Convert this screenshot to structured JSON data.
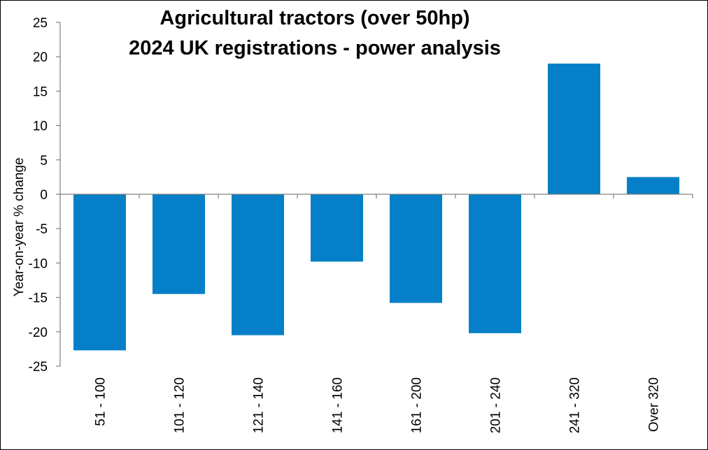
{
  "chart_data": {
    "type": "bar",
    "title_lines": [
      "Agricultural tractors (over 50hp)",
      "2024 UK registrations - power analysis"
    ],
    "xlabel": "",
    "ylabel": "Year-on-year  % change",
    "categories": [
      "51 - 100",
      "101 - 120",
      "121 - 140",
      "141 - 160",
      "161 - 200",
      "201 - 240",
      "241 - 320",
      "Over 320"
    ],
    "values": [
      -22.7,
      -14.5,
      -20.5,
      -9.8,
      -15.8,
      -20.2,
      19.0,
      2.5
    ],
    "ylim": [
      -25,
      25
    ],
    "yticks": [
      25,
      20,
      15,
      10,
      5,
      0,
      -5,
      -10,
      -15,
      -20,
      -25
    ],
    "grid": false,
    "legend": "none",
    "bar_color": "#0580C8"
  }
}
